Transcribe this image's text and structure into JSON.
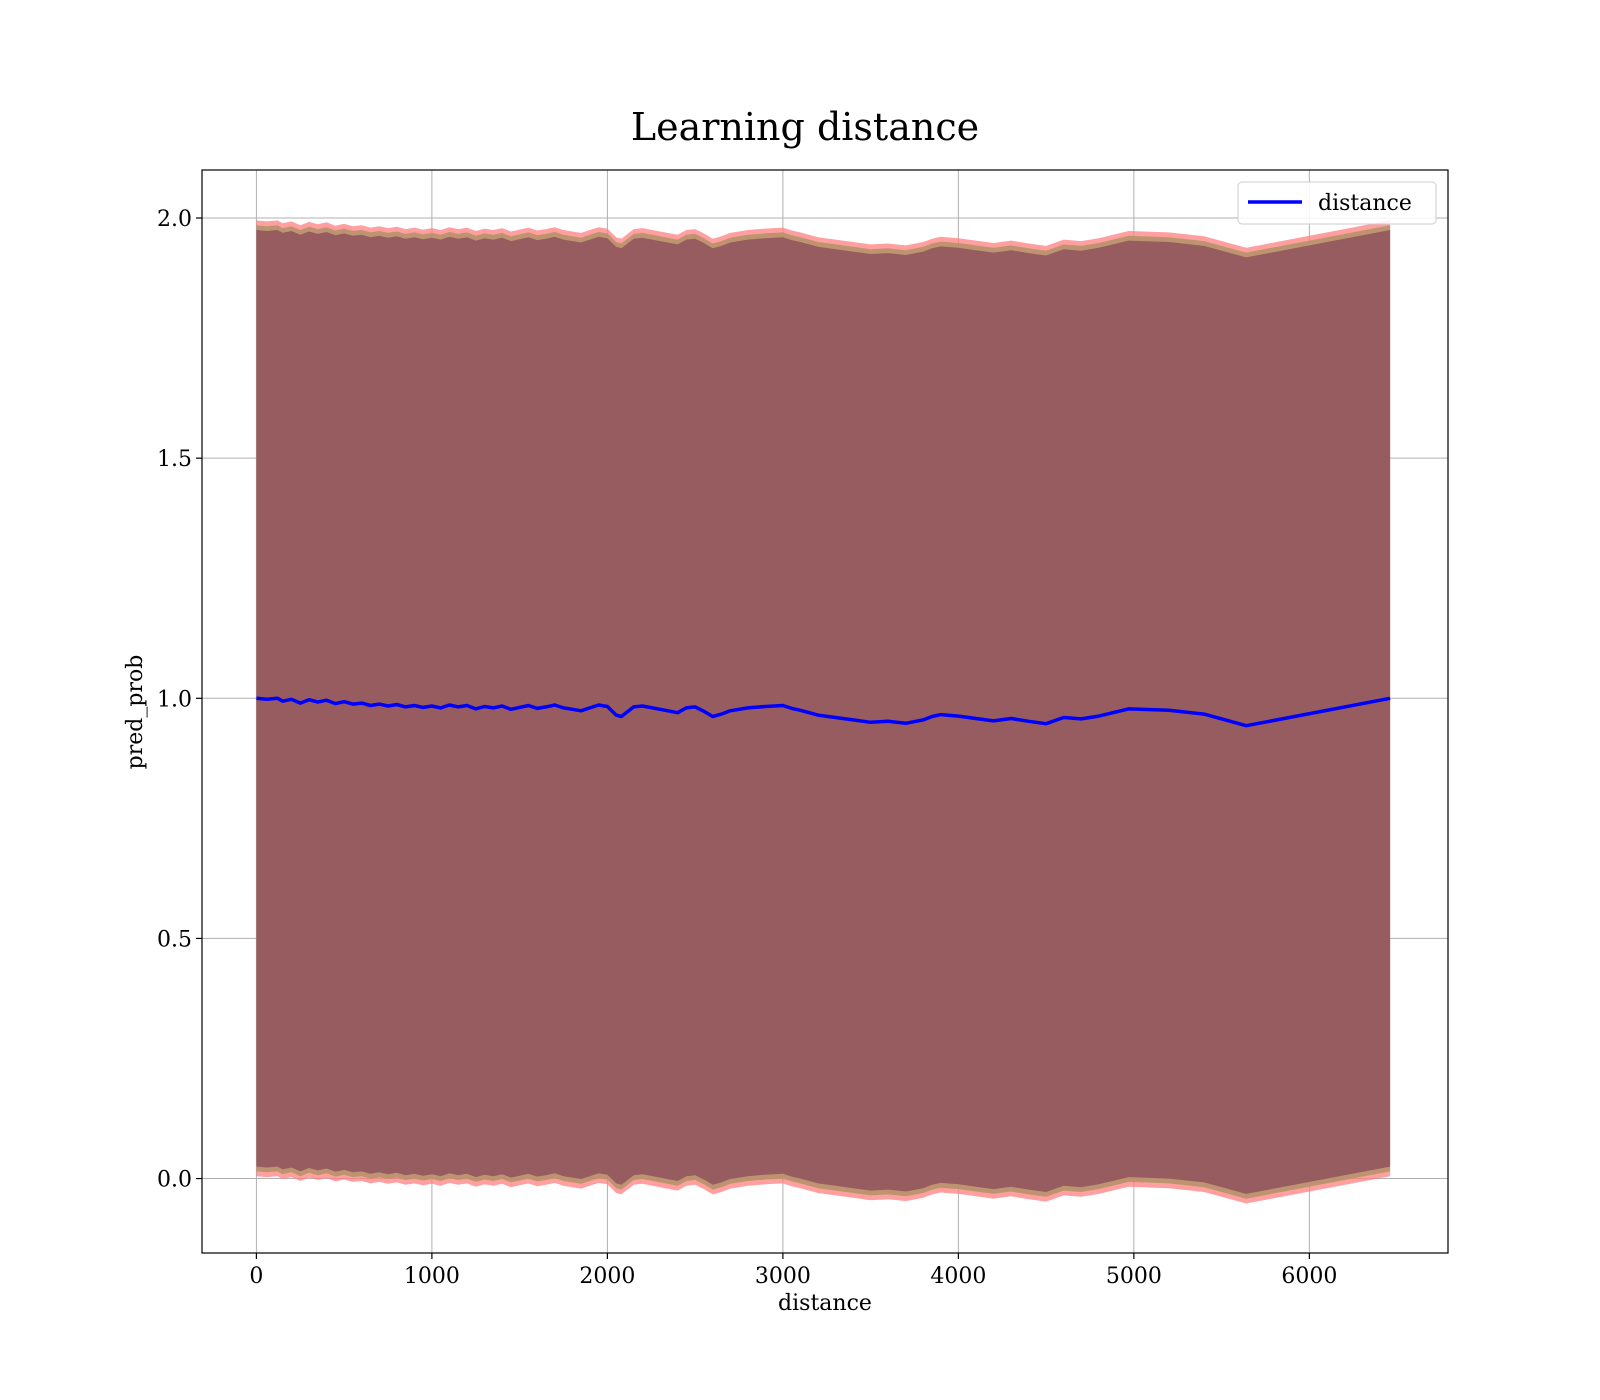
{
  "chart_data": {
    "type": "line",
    "title": "Learning distance",
    "xlabel": "distance",
    "ylabel": "pred_prob",
    "xlim": [
      -310,
      6790
    ],
    "ylim": [
      -0.155,
      2.1
    ],
    "xticks": [
      0,
      1000,
      2000,
      3000,
      4000,
      5000,
      6000
    ],
    "yticks": [
      0.0,
      0.5,
      1.0,
      1.5,
      2.0
    ],
    "xtick_labels": [
      "0",
      "1000",
      "2000",
      "3000",
      "4000",
      "5000",
      "6000"
    ],
    "ytick_labels": [
      "0.0",
      "0.5",
      "1.0",
      "1.5",
      "2.0"
    ],
    "grid": true,
    "legend": {
      "position": "top-right",
      "entries": [
        "distance"
      ]
    },
    "series": [
      {
        "name": "distance",
        "color": "#0000ff",
        "x": [
          0,
          60,
          120,
          150,
          200,
          250,
          300,
          350,
          400,
          450,
          500,
          550,
          600,
          650,
          700,
          750,
          800,
          850,
          900,
          950,
          1000,
          1050,
          1100,
          1150,
          1200,
          1250,
          1300,
          1350,
          1400,
          1450,
          1500,
          1550,
          1600,
          1650,
          1700,
          1750,
          1800,
          1850,
          1900,
          1950,
          2000,
          2050,
          2080,
          2150,
          2200,
          2300,
          2400,
          2450,
          2500,
          2550,
          2600,
          2650,
          2700,
          2800,
          2900,
          3000,
          3050,
          3100,
          3200,
          3300,
          3400,
          3500,
          3600,
          3700,
          3800,
          3850,
          3900,
          4000,
          4100,
          4200,
          4300,
          4400,
          4500,
          4600,
          4700,
          4800,
          4970,
          5200,
          5400,
          5640,
          6460
        ],
        "values": [
          1.0,
          0.998,
          1.0,
          0.994,
          0.998,
          0.99,
          0.997,
          0.992,
          0.996,
          0.989,
          0.993,
          0.988,
          0.99,
          0.985,
          0.988,
          0.984,
          0.987,
          0.982,
          0.985,
          0.981,
          0.984,
          0.98,
          0.986,
          0.982,
          0.985,
          0.978,
          0.983,
          0.98,
          0.984,
          0.977,
          0.981,
          0.985,
          0.979,
          0.982,
          0.986,
          0.98,
          0.977,
          0.974,
          0.98,
          0.986,
          0.983,
          0.965,
          0.962,
          0.982,
          0.984,
          0.977,
          0.97,
          0.98,
          0.982,
          0.973,
          0.962,
          0.967,
          0.974,
          0.98,
          0.983,
          0.985,
          0.979,
          0.975,
          0.965,
          0.96,
          0.955,
          0.95,
          0.952,
          0.948,
          0.955,
          0.962,
          0.966,
          0.963,
          0.958,
          0.953,
          0.958,
          0.952,
          0.947,
          0.96,
          0.957,
          0.963,
          0.978,
          0.975,
          0.967,
          0.943,
          1.0
        ]
      }
    ],
    "band": {
      "color": "#8b4d5c",
      "edge_color": "#ff7f7f",
      "description_values": "lower = value - 0.98, upper = value + 0.98"
    }
  }
}
